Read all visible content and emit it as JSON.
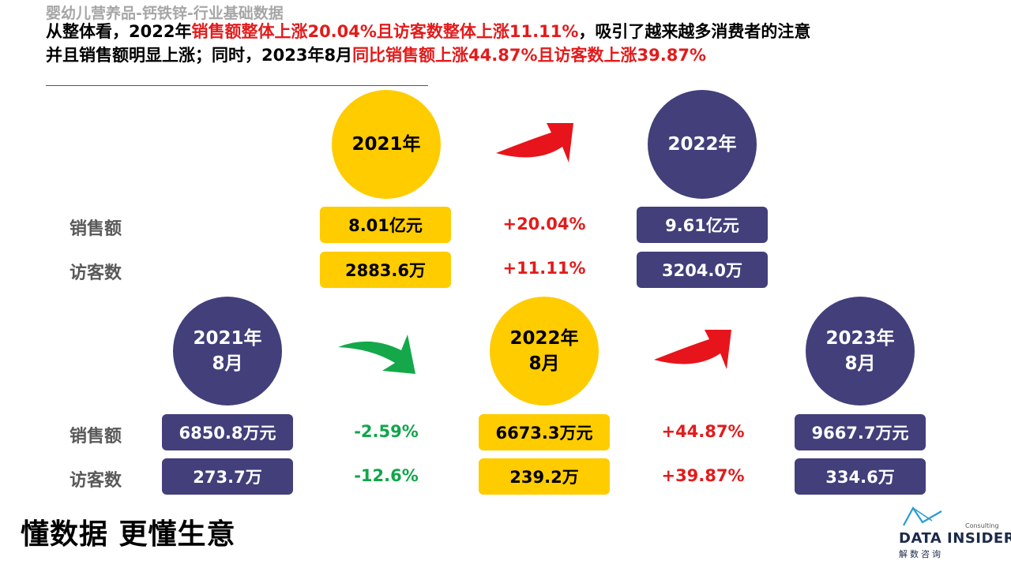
{
  "slide": {
    "subtitle": "婴幼儿营养品-钙铁锌-行业基础数据",
    "headline_line1": [
      {
        "text": "从整体看，2022年",
        "highlight": false
      },
      {
        "text": "销售额整体上涨20.04%且访客数整体上涨11.11%",
        "highlight": true
      },
      {
        "text": "，吸引了越来越多消费者的注意",
        "highlight": false
      }
    ],
    "headline_line2": [
      {
        "text": "并且销售额明显上涨；同时，2023年8月",
        "highlight": false
      },
      {
        "text": "同比销售额上涨44.87%且访客数上涨39.87%",
        "highlight": true
      }
    ],
    "colors": {
      "yellow": "#ffcc00",
      "navy": "#423f7b",
      "red": "#e31b1b",
      "green": "#10a64a"
    }
  },
  "annual": {
    "period_a": "2021年",
    "period_b": "2022年",
    "sales_label": "销售额",
    "visitors_label": "访客数",
    "sales_a": "8.01亿元",
    "sales_b": "9.61亿元",
    "sales_change": "+20.04%",
    "visitors_a": "2883.6万",
    "visitors_b": "3204.0万",
    "visitors_change": "+11.11%",
    "arrow_icon": "red-curved-up-arrow-icon"
  },
  "monthly": {
    "period_a_year": "2021年",
    "period_a_month": "8月",
    "period_b_year": "2022年",
    "period_b_month": "8月",
    "period_c_year": "2023年",
    "period_c_month": "8月",
    "sales_label": "销售额",
    "visitors_label": "访客数",
    "sales_a": "6850.8万元",
    "sales_b": "6673.3万元",
    "sales_c": "9667.7万元",
    "sales_change_ab": "-2.59%",
    "sales_change_bc": "+44.87%",
    "visitors_a": "273.7万",
    "visitors_b": "239.2万",
    "visitors_c": "334.6万",
    "visitors_change_ab": "-12.6%",
    "visitors_change_bc": "+39.87%",
    "arrow_ab_icon": "green-curved-down-arrow-icon",
    "arrow_bc_icon": "red-curved-up-arrow-icon"
  },
  "footer": {
    "slogan": "懂数据 更懂生意",
    "logo_name": "DATA INSIDER",
    "logo_cn": "解数咨询",
    "logo_consulting": "Consulting",
    "logo_icon": "data-insider-logo-icon"
  }
}
